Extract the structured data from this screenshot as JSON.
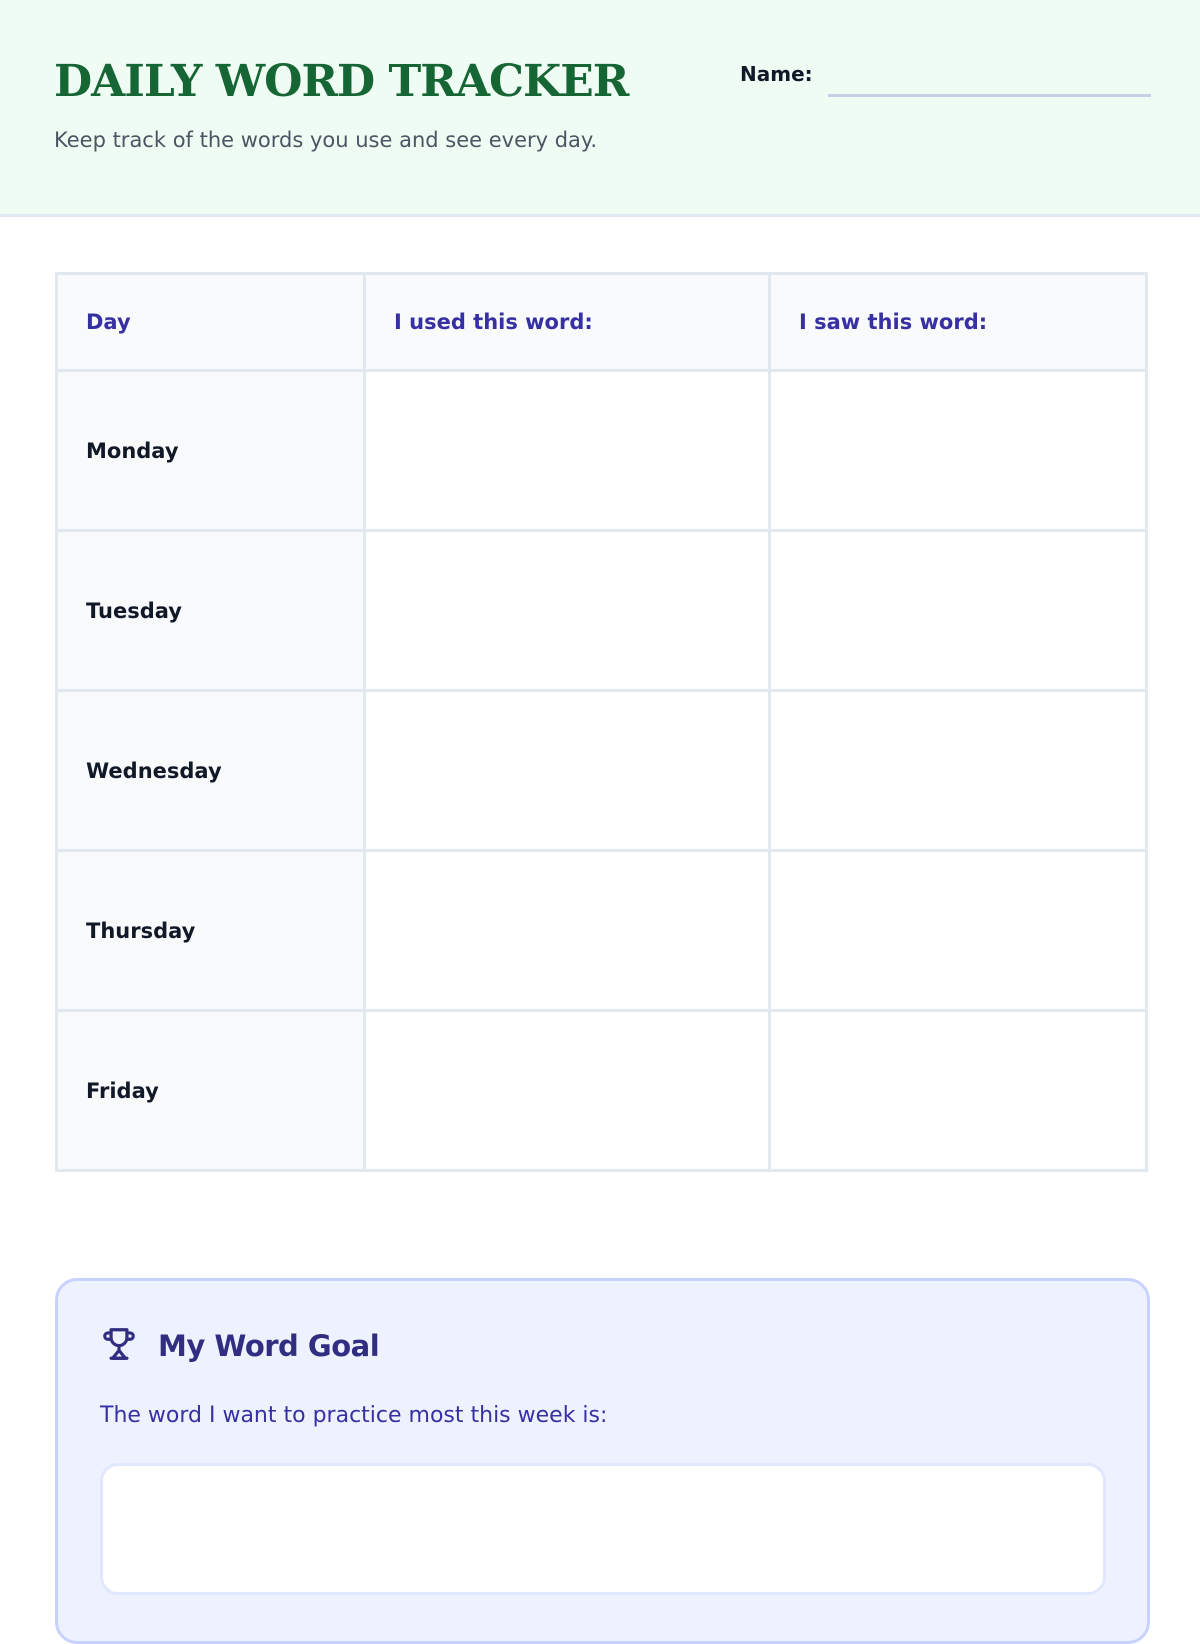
{
  "header": {
    "title": "DAILY WORD TRACKER",
    "subtitle": "Keep track of the words you use and see every day.",
    "name_label": "Name:",
    "name_value": ""
  },
  "table": {
    "columns": [
      "Day",
      "I used this word:",
      "I saw this word:"
    ],
    "rows": [
      {
        "day": "Monday",
        "used": "",
        "saw": ""
      },
      {
        "day": "Tuesday",
        "used": "",
        "saw": ""
      },
      {
        "day": "Wednesday",
        "used": "",
        "saw": ""
      },
      {
        "day": "Thursday",
        "used": "",
        "saw": ""
      },
      {
        "day": "Friday",
        "used": "",
        "saw": ""
      }
    ]
  },
  "goal": {
    "icon": "trophy-icon",
    "title": "My Word Goal",
    "prompt": "The word I want to practice most this week is:",
    "value": ""
  },
  "colors": {
    "title_green": "#166534",
    "header_bg": "#effcf3",
    "accent_indigo": "#3730a3",
    "goal_bg": "#eef2ff"
  }
}
